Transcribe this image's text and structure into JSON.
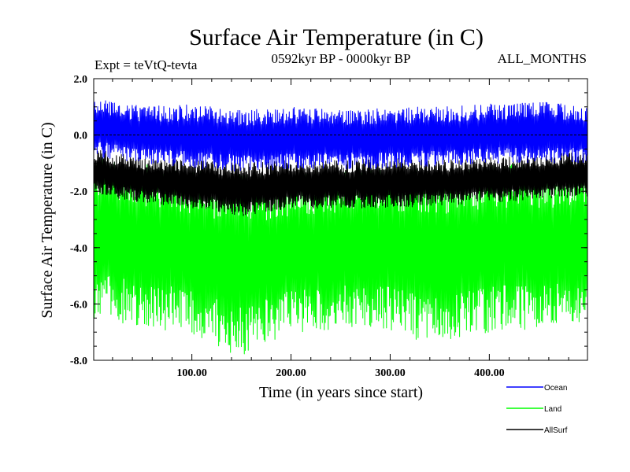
{
  "chart_data": {
    "type": "line",
    "title": "Surface Air Temperature (in C)",
    "subtitle_left": "Expt = teVtQ-tevta",
    "subtitle_center": "0592kyr BP - 0000kyr BP",
    "subtitle_right": "ALL_MONTHS",
    "xlabel": "Time (in years since start)",
    "ylabel": "Surface Air Temperature (in C)",
    "xlim": [
      1,
      499
    ],
    "ylim": [
      -8.0,
      2.0
    ],
    "x_ticks": [
      100,
      200,
      300,
      400
    ],
    "x_tick_labels": [
      "100.00",
      "200.00",
      "300.00",
      "400.00"
    ],
    "y_ticks": [
      2.0,
      0.0,
      -2.0,
      -4.0,
      -6.0,
      -8.0
    ],
    "y_tick_labels": [
      "2.0",
      "0.0",
      "-2.0",
      "-4.0",
      "-6.0",
      "-8.0"
    ],
    "zero_line": true,
    "grid": false,
    "legend_position": "bottom-right, below plot",
    "series": [
      {
        "name": "Ocean",
        "color": "#0000ff",
        "envelope": {
          "x": [
            1,
            50,
            100,
            150,
            200,
            250,
            300,
            350,
            400,
            450,
            499
          ],
          "max": [
            1.4,
            1.0,
            1.1,
            0.9,
            1.0,
            0.9,
            1.0,
            1.0,
            1.1,
            1.2,
            1.0
          ],
          "min": [
            -0.8,
            -1.0,
            -1.2,
            -1.3,
            -1.2,
            -1.2,
            -1.2,
            -1.1,
            -1.0,
            -1.0,
            -1.0
          ]
        }
      },
      {
        "name": "Land",
        "color": "#00ff00",
        "envelope": {
          "x": [
            1,
            50,
            100,
            150,
            200,
            250,
            300,
            350,
            400,
            450,
            499
          ],
          "max": [
            -0.7,
            -1.0,
            -1.2,
            -1.4,
            -1.3,
            -1.2,
            -1.1,
            -1.3,
            -1.0,
            -1.0,
            -1.0
          ],
          "min": [
            -6.5,
            -6.8,
            -7.1,
            -7.9,
            -7.1,
            -6.9,
            -7.0,
            -7.5,
            -7.0,
            -6.9,
            -6.8
          ]
        }
      },
      {
        "name": "AllSurf",
        "color": "#000000",
        "envelope": {
          "x": [
            1,
            50,
            100,
            150,
            200,
            250,
            300,
            350,
            400,
            450,
            499
          ],
          "max": [
            -0.5,
            -0.8,
            -0.9,
            -1.0,
            -0.9,
            -0.9,
            -0.8,
            -0.9,
            -0.8,
            -0.7,
            -0.6
          ],
          "min": [
            -2.1,
            -2.4,
            -2.6,
            -2.9,
            -2.6,
            -2.6,
            -2.6,
            -2.5,
            -2.4,
            -2.3,
            -2.2
          ]
        }
      }
    ]
  }
}
